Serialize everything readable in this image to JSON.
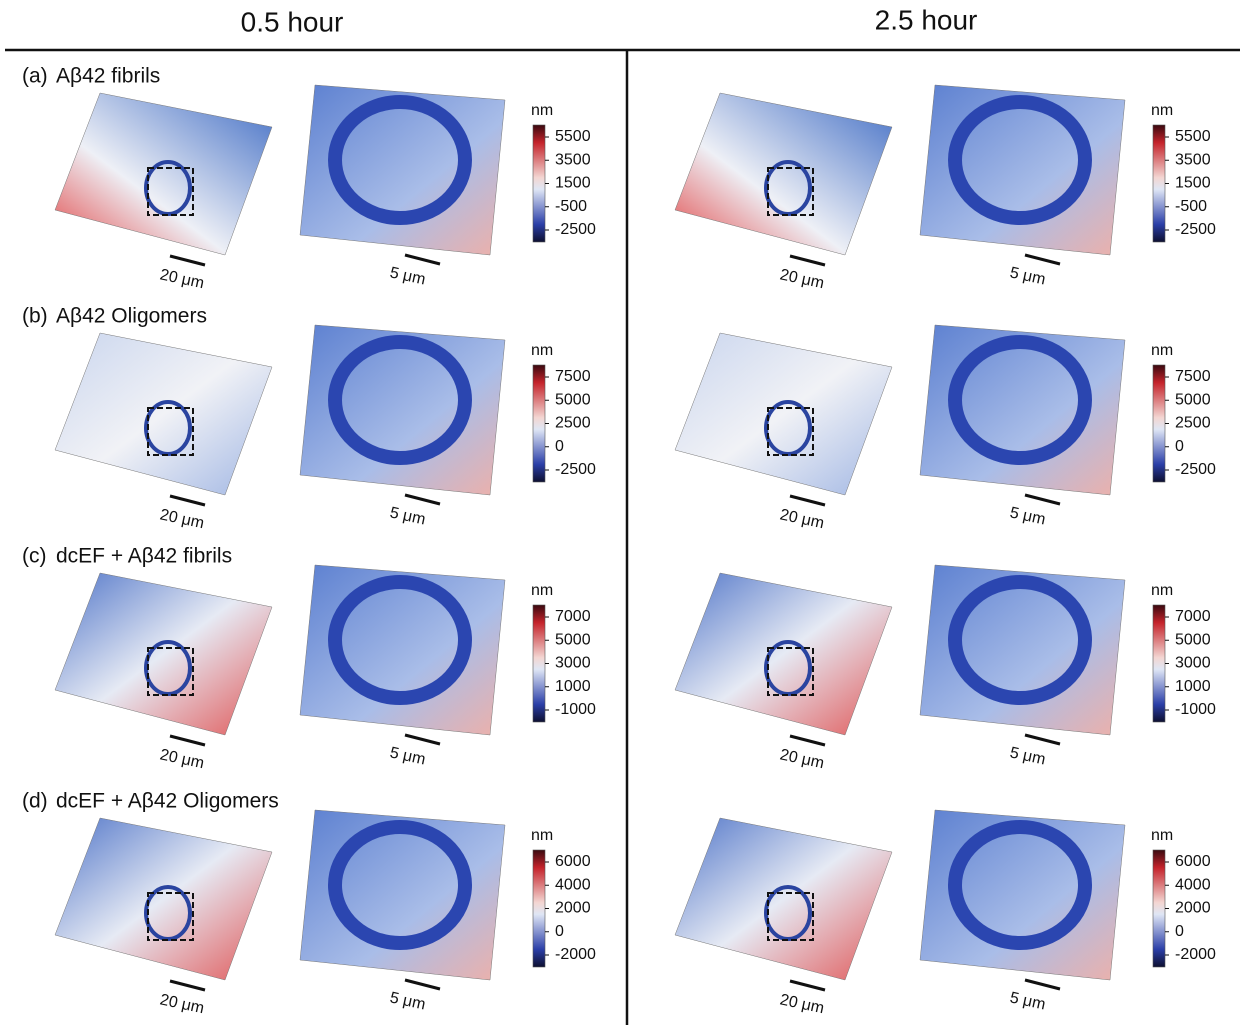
{
  "header": {
    "columns": [
      "0.5  hour",
      "2.5 hour"
    ]
  },
  "scale_bars": {
    "overview": "20 μm",
    "zoom": "5 μm"
  },
  "rows": [
    {
      "label": "(a)",
      "title": "Aβ42  fibrils",
      "colorbars": [
        {
          "unit": "nm",
          "ticks": [
            5500,
            3500,
            1500,
            -500,
            -2500
          ]
        },
        {
          "unit": "nm",
          "ticks": [
            5500,
            3500,
            1500,
            -500,
            -2500
          ]
        }
      ]
    },
    {
      "label": "(b)",
      "title": "Aβ42  Oligomers",
      "colorbars": [
        {
          "unit": "nm",
          "ticks": [
            7500,
            5000,
            2500,
            0,
            -2500
          ]
        },
        {
          "unit": "nm",
          "ticks": [
            7500,
            5000,
            2500,
            0,
            -2500
          ]
        }
      ]
    },
    {
      "label": "(c)",
      "title": "dcEF + Aβ42 fibrils",
      "colorbars": [
        {
          "unit": "nm",
          "ticks": [
            7000,
            5000,
            3000,
            1000,
            -1000
          ]
        },
        {
          "unit": "nm",
          "ticks": [
            7000,
            5000,
            3000,
            1000,
            -1000
          ]
        }
      ]
    },
    {
      "label": "(d)",
      "title": "dcEF + Aβ42 Oligomers",
      "colorbars": [
        {
          "unit": "nm",
          "ticks": [
            6000,
            4000,
            2000,
            0,
            -2000
          ]
        },
        {
          "unit": "nm",
          "ticks": [
            6000,
            4000,
            2000,
            0,
            -2000
          ]
        }
      ]
    }
  ]
}
